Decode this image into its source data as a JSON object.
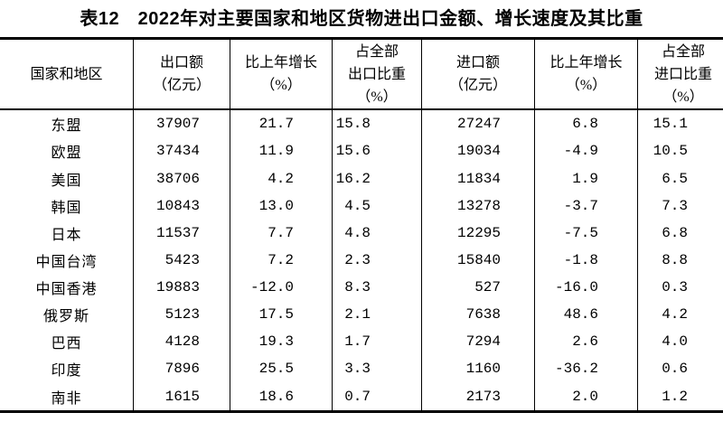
{
  "title": "表12　2022年对主要国家和地区货物进出口金额、增长速度及其比重",
  "colors": {
    "text": "#000000",
    "background": "#ffffff",
    "border": "#000000"
  },
  "chart_data": {
    "type": "table",
    "title": "表12　2022年对主要国家和地区货物进出口金额、增长速度及其比重",
    "columns": [
      {
        "id": "region",
        "label": "国家和地区",
        "lines": [
          "国家和地区"
        ]
      },
      {
        "id": "export-value",
        "label": "出口额（亿元）",
        "lines": [
          "出口额",
          "（亿元）"
        ]
      },
      {
        "id": "export-growth",
        "label": "比上年增长（%）",
        "lines": [
          "比上年增长",
          "（%）"
        ]
      },
      {
        "id": "export-share",
        "label": "占全部出口比重（%）",
        "lines": [
          "占全部",
          "出口比重",
          "（%）"
        ]
      },
      {
        "id": "import-value",
        "label": "进口额（亿元）",
        "lines": [
          "进口额",
          "（亿元）"
        ]
      },
      {
        "id": "import-growth",
        "label": "比上年增长（%）",
        "lines": [
          "比上年增长",
          "（%）"
        ]
      },
      {
        "id": "import-share",
        "label": "占全部进口比重（%）",
        "lines": [
          "占全部",
          "进口比重",
          "（%）"
        ]
      }
    ],
    "rows": [
      [
        "东盟",
        "37907",
        "21.7",
        "15.8",
        "27247",
        "6.8",
        "15.1"
      ],
      [
        "欧盟",
        "37434",
        "11.9",
        "15.6",
        "19034",
        "-4.9",
        "10.5"
      ],
      [
        "美国",
        "38706",
        "4.2",
        "16.2",
        "11834",
        "1.9",
        "6.5"
      ],
      [
        "韩国",
        "10843",
        "13.0",
        "4.5",
        "13278",
        "-3.7",
        "7.3"
      ],
      [
        "日本",
        "11537",
        "7.7",
        "4.8",
        "12295",
        "-7.5",
        "6.8"
      ],
      [
        "中国台湾",
        "5423",
        "7.2",
        "2.3",
        "15840",
        "-1.8",
        "8.8"
      ],
      [
        "中国香港",
        "19883",
        "-12.0",
        "8.3",
        "527",
        "-16.0",
        "0.3"
      ],
      [
        "俄罗斯",
        "5123",
        "17.5",
        "2.1",
        "7638",
        "48.6",
        "4.2"
      ],
      [
        "巴西",
        "4128",
        "19.3",
        "1.7",
        "7294",
        "2.6",
        "4.0"
      ],
      [
        "印度",
        "7896",
        "25.5",
        "3.3",
        "1160",
        "-36.2",
        "0.6"
      ],
      [
        "南非",
        "1615",
        "18.6",
        "0.7",
        "2173",
        "2.0",
        "1.2"
      ]
    ]
  }
}
